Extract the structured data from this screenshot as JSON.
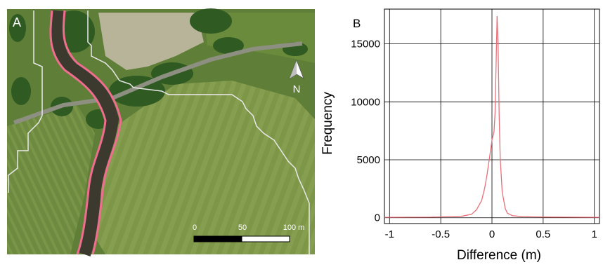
{
  "panel_a": {
    "label": "A",
    "north_label": "N",
    "scale_bar": {
      "ticks": [
        "0",
        "50",
        "100 m"
      ]
    },
    "colors": {
      "river_outline": "#ef6d8e",
      "boundary": "#e9e9e9",
      "field": "#6f8a3f",
      "woodland": "#2f5a22"
    }
  },
  "chart_data": {
    "type": "line",
    "panel_label": "B",
    "xlabel": "Difference (m)",
    "ylabel": "Frequency",
    "xlim": [
      -1.05,
      1.05
    ],
    "ylim": [
      -500,
      18000
    ],
    "x_ticks": [
      -1,
      -0.5,
      0,
      0.5,
      1
    ],
    "x_tick_labels": [
      "-1",
      "-0.5",
      "0",
      "0.5",
      "1"
    ],
    "y_ticks": [
      0,
      5000,
      10000,
      15000
    ],
    "y_tick_labels": [
      "0",
      "5000",
      "10000",
      "15000"
    ],
    "grid": true,
    "series": [
      {
        "color": "#e8707a",
        "x": [
          -1.05,
          -0.6,
          -0.3,
          -0.2,
          -0.15,
          -0.1,
          -0.07,
          -0.05,
          -0.03,
          -0.01,
          0.0,
          0.02,
          0.03,
          0.04,
          0.05,
          0.06,
          0.07,
          0.08,
          0.1,
          0.13,
          0.15,
          0.2,
          0.3,
          0.5,
          0.7,
          1.05
        ],
        "y": [
          40,
          50,
          120,
          300,
          700,
          1500,
          2600,
          3600,
          4800,
          6000,
          6700,
          7400,
          9000,
          13000,
          17400,
          15000,
          9000,
          5200,
          2200,
          800,
          400,
          180,
          90,
          60,
          50,
          40
        ]
      }
    ]
  }
}
